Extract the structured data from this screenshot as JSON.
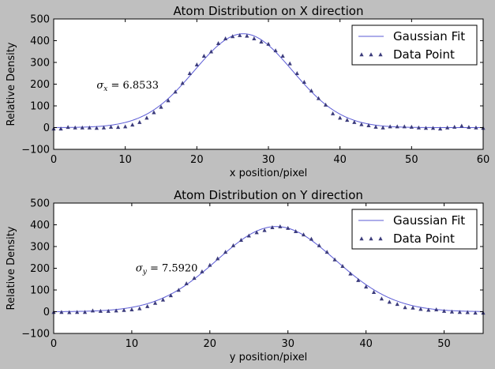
{
  "chart_data": [
    {
      "type": "line+scatter",
      "title": "Atom Distribution on X direction",
      "xlabel": "x position/pixel",
      "ylabel": "Relative Density",
      "xlim": [
        0,
        60
      ],
      "ylim": [
        -100,
        500
      ],
      "xticks": [
        "0",
        "10",
        "20",
        "30",
        "40",
        "50",
        "60"
      ],
      "yticks": [
        "−100",
        "0",
        "100",
        "200",
        "300",
        "400",
        "500"
      ],
      "legend_position": "top-right",
      "annotation": {
        "symbol": "σ",
        "subscript": "x",
        "text": " = 6.8533"
      },
      "fit": {
        "name": "Gaussian Fit",
        "color": "#5b5bd6",
        "amplitude": 432,
        "center": 26.5,
        "sigma": 6.8533,
        "offset": 0
      },
      "series": [
        {
          "name": "Data Point",
          "color": "#3c3c7c",
          "x": [
            0,
            1,
            2,
            3,
            4,
            5,
            6,
            7,
            8,
            9,
            10,
            11,
            12,
            13,
            14,
            15,
            16,
            17,
            18,
            19,
            20,
            21,
            22,
            23,
            24,
            25,
            26,
            27,
            28,
            29,
            30,
            31,
            32,
            33,
            34,
            35,
            36,
            37,
            38,
            39,
            40,
            41,
            42,
            43,
            44,
            45,
            46,
            47,
            48,
            49,
            50,
            51,
            52,
            53,
            54,
            55,
            56,
            57,
            58,
            59,
            60
          ],
          "y": [
            -5,
            -5,
            2,
            0,
            0,
            0,
            -2,
            0,
            3,
            2,
            5,
            13,
            25,
            45,
            70,
            95,
            125,
            165,
            205,
            250,
            290,
            330,
            350,
            388,
            410,
            420,
            425,
            422,
            410,
            395,
            385,
            355,
            330,
            295,
            250,
            210,
            170,
            135,
            105,
            65,
            45,
            35,
            25,
            15,
            10,
            3,
            0,
            5,
            5,
            5,
            3,
            0,
            -2,
            -2,
            -5,
            0,
            3,
            8,
            2,
            0,
            -2
          ]
        }
      ]
    },
    {
      "type": "line+scatter",
      "title": "Atom Distribution on Y direction",
      "xlabel": "y position/pixel",
      "ylabel": "Relative Density",
      "xlim": [
        0,
        55
      ],
      "ylim": [
        -100,
        500
      ],
      "xticks": [
        "0",
        "10",
        "20",
        "30",
        "40",
        "50"
      ],
      "yticks": [
        "−100",
        "0",
        "100",
        "200",
        "300",
        "400",
        "500"
      ],
      "legend_position": "top-right",
      "annotation": {
        "symbol": "σ",
        "subscript": "y",
        "text": " = 7.5920"
      },
      "fit": {
        "name": "Gaussian Fit",
        "color": "#5b5bd6",
        "amplitude": 392,
        "center": 28.5,
        "sigma": 7.592,
        "offset": 0
      },
      "series": [
        {
          "name": "Data Point",
          "color": "#3c3c7c",
          "x": [
            0,
            1,
            2,
            3,
            4,
            5,
            6,
            7,
            8,
            9,
            10,
            11,
            12,
            13,
            14,
            15,
            16,
            17,
            18,
            19,
            20,
            21,
            22,
            23,
            24,
            25,
            26,
            27,
            28,
            29,
            30,
            31,
            32,
            33,
            34,
            35,
            36,
            37,
            38,
            39,
            40,
            41,
            42,
            43,
            44,
            45,
            46,
            47,
            48,
            49,
            50,
            51,
            52,
            53,
            54,
            55
          ],
          "y": [
            -2,
            -2,
            -3,
            -2,
            -2,
            5,
            3,
            3,
            5,
            7,
            10,
            15,
            25,
            40,
            55,
            75,
            100,
            130,
            155,
            185,
            215,
            245,
            275,
            305,
            330,
            350,
            365,
            375,
            388,
            392,
            385,
            370,
            355,
            335,
            305,
            275,
            240,
            210,
            175,
            145,
            115,
            90,
            60,
            45,
            35,
            20,
            18,
            12,
            8,
            10,
            3,
            0,
            -2,
            -3,
            -5,
            -5
          ]
        }
      ]
    }
  ]
}
